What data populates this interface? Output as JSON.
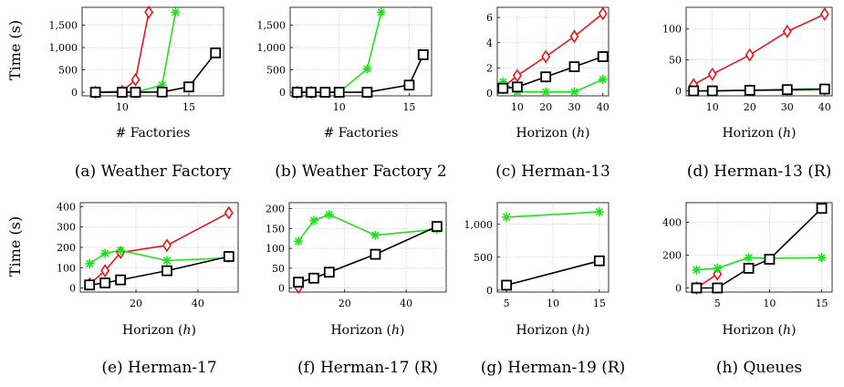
{
  "figure": {
    "y_axis_title": "Time (s)"
  },
  "chart_data": [
    {
      "type": "line",
      "caption": "(a) Weather Factory",
      "xlabel": "# Factories",
      "ylabel": "Time (s)",
      "xlim": [
        7,
        17.6
      ],
      "ylim": [
        -80,
        1900
      ],
      "xticks": [
        10,
        15
      ],
      "yticks": [
        0,
        500,
        1000,
        1500
      ],
      "ytick_labels": [
        "0",
        "500",
        "1,000",
        "1,500"
      ],
      "grid": true,
      "series": [
        {
          "color": "#e8161b",
          "marker": "diamond",
          "x": [
            8,
            10,
            11,
            12
          ],
          "y": [
            0,
            20,
            280,
            1790
          ]
        },
        {
          "color": "#1ee21e",
          "marker": "star",
          "x": [
            8,
            10,
            11,
            13,
            14
          ],
          "y": [
            0,
            0,
            0,
            160,
            1790
          ]
        },
        {
          "color": "#000000",
          "marker": "square",
          "x": [
            8,
            10,
            11,
            13,
            15,
            17
          ],
          "y": [
            0,
            0,
            0,
            5,
            120,
            880
          ]
        }
      ]
    },
    {
      "type": "line",
      "caption": "(b) Weather Factory 2",
      "xlabel": "# Factories",
      "ylabel": "",
      "xlim": [
        6.5,
        16.6
      ],
      "ylim": [
        -80,
        1900
      ],
      "xticks": [
        10,
        15
      ],
      "yticks": [
        0,
        500,
        1000,
        1500
      ],
      "ytick_labels": [
        "0",
        "500",
        "1,000",
        "1,500"
      ],
      "grid": true,
      "series": [
        {
          "color": "#e8161b",
          "marker": "diamond",
          "x": [
            7,
            8
          ],
          "y": [
            0,
            0
          ]
        },
        {
          "color": "#1ee21e",
          "marker": "star",
          "x": [
            7,
            8,
            9,
            10,
            12,
            13
          ],
          "y": [
            0,
            0,
            0,
            0,
            520,
            1790
          ]
        },
        {
          "color": "#000000",
          "marker": "square",
          "x": [
            7,
            8,
            9,
            10,
            12,
            15,
            16
          ],
          "y": [
            0,
            0,
            0,
            0,
            0,
            160,
            840
          ]
        }
      ]
    },
    {
      "type": "line",
      "caption": "(c) Herman-13",
      "xlabel": "Horizon (h)",
      "ylabel": "",
      "xlim": [
        3,
        42
      ],
      "ylim": [
        -0.2,
        6.8
      ],
      "xticks": [
        10,
        20,
        30,
        40
      ],
      "yticks": [
        0,
        2,
        4,
        6
      ],
      "ytick_labels": [
        "0",
        "2",
        "4",
        "6"
      ],
      "grid": true,
      "series": [
        {
          "color": "#e8161b",
          "marker": "diamond",
          "x": [
            5,
            10,
            20,
            30,
            40
          ],
          "y": [
            0.45,
            1.4,
            2.9,
            4.5,
            6.3
          ]
        },
        {
          "color": "#1ee21e",
          "marker": "star",
          "x": [
            5,
            10,
            20,
            30,
            40
          ],
          "y": [
            0.9,
            0.1,
            0.1,
            0.1,
            1.1
          ]
        },
        {
          "color": "#000000",
          "marker": "square",
          "x": [
            5,
            10,
            20,
            30,
            40
          ],
          "y": [
            0.4,
            0.5,
            1.3,
            2.1,
            2.9
          ]
        }
      ]
    },
    {
      "type": "line",
      "caption": "(d) Herman-13 (R)",
      "xlabel": "Horizon (h)",
      "ylabel": "",
      "xlim": [
        3,
        42
      ],
      "ylim": [
        -8,
        135
      ],
      "xticks": [
        10,
        20,
        30,
        40
      ],
      "yticks": [
        0,
        50,
        100
      ],
      "ytick_labels": [
        "0",
        "50",
        "100"
      ],
      "grid": true,
      "series": [
        {
          "color": "#e8161b",
          "marker": "diamond",
          "x": [
            5,
            10,
            20,
            30,
            40
          ],
          "y": [
            10,
            27,
            58,
            96,
            124
          ]
        },
        {
          "color": "#1ee21e",
          "marker": "star",
          "x": [
            5,
            10,
            20,
            30,
            40
          ],
          "y": [
            0,
            0,
            1,
            1,
            2
          ]
        },
        {
          "color": "#000000",
          "marker": "square",
          "x": [
            5,
            10,
            20,
            30,
            40
          ],
          "y": [
            0,
            0,
            1,
            2,
            3
          ]
        }
      ]
    },
    {
      "type": "line",
      "caption": "(e) Herman-17",
      "xlabel": "Horizon (h)",
      "ylabel": "Time (s)",
      "xlim": [
        2,
        53
      ],
      "ylim": [
        -20,
        420
      ],
      "xticks": [
        20,
        40
      ],
      "yticks": [
        0,
        100,
        200,
        300,
        400
      ],
      "ytick_labels": [
        "0",
        "100",
        "200",
        "300",
        "400"
      ],
      "grid": true,
      "series": [
        {
          "color": "#e8161b",
          "marker": "diamond",
          "x": [
            5,
            10,
            15,
            30,
            50
          ],
          "y": [
            20,
            85,
            175,
            210,
            370
          ]
        },
        {
          "color": "#1ee21e",
          "marker": "star",
          "x": [
            5,
            10,
            15,
            30,
            50
          ],
          "y": [
            120,
            170,
            185,
            135,
            148
          ]
        },
        {
          "color": "#000000",
          "marker": "square",
          "x": [
            5,
            10,
            15,
            30,
            50
          ],
          "y": [
            15,
            25,
            40,
            85,
            155
          ]
        }
      ]
    },
    {
      "type": "line",
      "caption": "(f) Herman-17 (R)",
      "xlabel": "Horizon (h)",
      "ylabel": "",
      "xlim": [
        2,
        53
      ],
      "ylim": [
        -10,
        215
      ],
      "xticks": [
        20,
        40
      ],
      "yticks": [
        0,
        50,
        100,
        150,
        200
      ],
      "ytick_labels": [
        "0",
        "50",
        "100",
        "150",
        "200"
      ],
      "grid": true,
      "series": [
        {
          "color": "#e8161b",
          "marker": "diamond",
          "x": [
            5
          ],
          "y": [
            2
          ]
        },
        {
          "color": "#1ee21e",
          "marker": "star",
          "x": [
            5,
            10,
            15,
            30,
            50
          ],
          "y": [
            118,
            170,
            185,
            133,
            148
          ]
        },
        {
          "color": "#000000",
          "marker": "square",
          "x": [
            5,
            10,
            15,
            30,
            50
          ],
          "y": [
            15,
            25,
            40,
            85,
            155
          ]
        }
      ]
    },
    {
      "type": "line",
      "caption": "(g) Herman-19 (R)",
      "xlabel": "Horizon (h)",
      "ylabel": "",
      "xlim": [
        4,
        16
      ],
      "ylim": [
        -30,
        1330
      ],
      "xticks": [
        5,
        10,
        15
      ],
      "yticks": [
        0,
        500,
        1000
      ],
      "ytick_labels": [
        "0",
        "500",
        "1,000"
      ],
      "grid": true,
      "series": [
        {
          "color": "#1ee21e",
          "marker": "star",
          "x": [
            5,
            15
          ],
          "y": [
            1110,
            1190
          ]
        },
        {
          "color": "#000000",
          "marker": "square",
          "x": [
            5,
            15
          ],
          "y": [
            75,
            445
          ]
        }
      ]
    },
    {
      "type": "line",
      "caption": "(h) Queues",
      "xlabel": "Horizon (h)",
      "ylabel": "",
      "xlim": [
        2,
        16
      ],
      "ylim": [
        -25,
        520
      ],
      "xticks": [
        5,
        10,
        15
      ],
      "yticks": [
        0,
        200,
        400
      ],
      "ytick_labels": [
        "0",
        "200",
        "400"
      ],
      "grid": true,
      "series": [
        {
          "color": "#e8161b",
          "marker": "diamond",
          "x": [
            3,
            5
          ],
          "y": [
            0,
            85
          ]
        },
        {
          "color": "#1ee21e",
          "marker": "star",
          "x": [
            3,
            5,
            8,
            10,
            15
          ],
          "y": [
            110,
            120,
            185,
            180,
            185
          ]
        },
        {
          "color": "#000000",
          "marker": "square",
          "x": [
            3,
            5,
            8,
            10,
            15
          ],
          "y": [
            0,
            0,
            120,
            175,
            485
          ]
        }
      ]
    }
  ]
}
